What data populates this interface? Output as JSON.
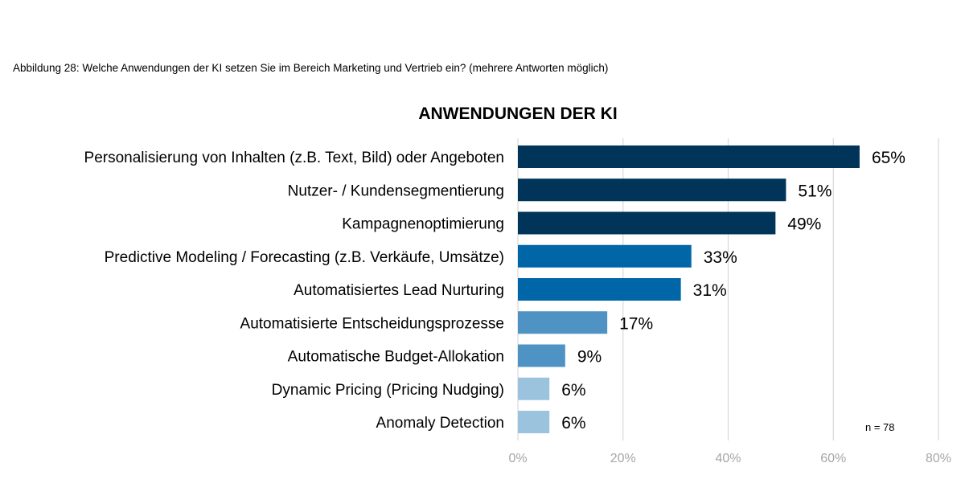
{
  "caption": "Abbildung 28: Welche Anwendungen der KI setzen Sie im Bereich Marketing und Vertrieb ein? (mehrere Antworten möglich)",
  "chart_data": {
    "type": "bar",
    "orientation": "horizontal",
    "title": "ANWENDUNGEN DER KI",
    "categories": [
      "Personalisierung von Inhalten (z.B. Text, Bild) oder Angeboten",
      "Nutzer- / Kundensegmentierung",
      "Kampagnenoptimierung",
      "Predictive Modeling / Forecasting (z.B. Verkäufe, Umsätze)",
      "Automatisiertes Lead Nurturing",
      "Automatisierte Entscheidungsprozesse",
      "Automatische Budget-Allokation",
      "Dynamic Pricing (Pricing Nudging)",
      "Anomaly Detection"
    ],
    "values": [
      65,
      51,
      49,
      33,
      31,
      17,
      9,
      6,
      6
    ],
    "value_labels": [
      "65%",
      "51%",
      "49%",
      "33%",
      "31%",
      "17%",
      "9%",
      "6%",
      "6%"
    ],
    "bar_colors": [
      "#003459",
      "#003459",
      "#003459",
      "#0066a8",
      "#0066a8",
      "#4f93c4",
      "#4f93c4",
      "#9cc3de",
      "#9cc3de"
    ],
    "xlim": [
      0,
      80
    ],
    "ticks": [
      0,
      20,
      40,
      60,
      80
    ],
    "tick_labels": [
      "0%",
      "20%",
      "40%",
      "60%",
      "80%"
    ],
    "grid": true,
    "note": "n = 78"
  }
}
